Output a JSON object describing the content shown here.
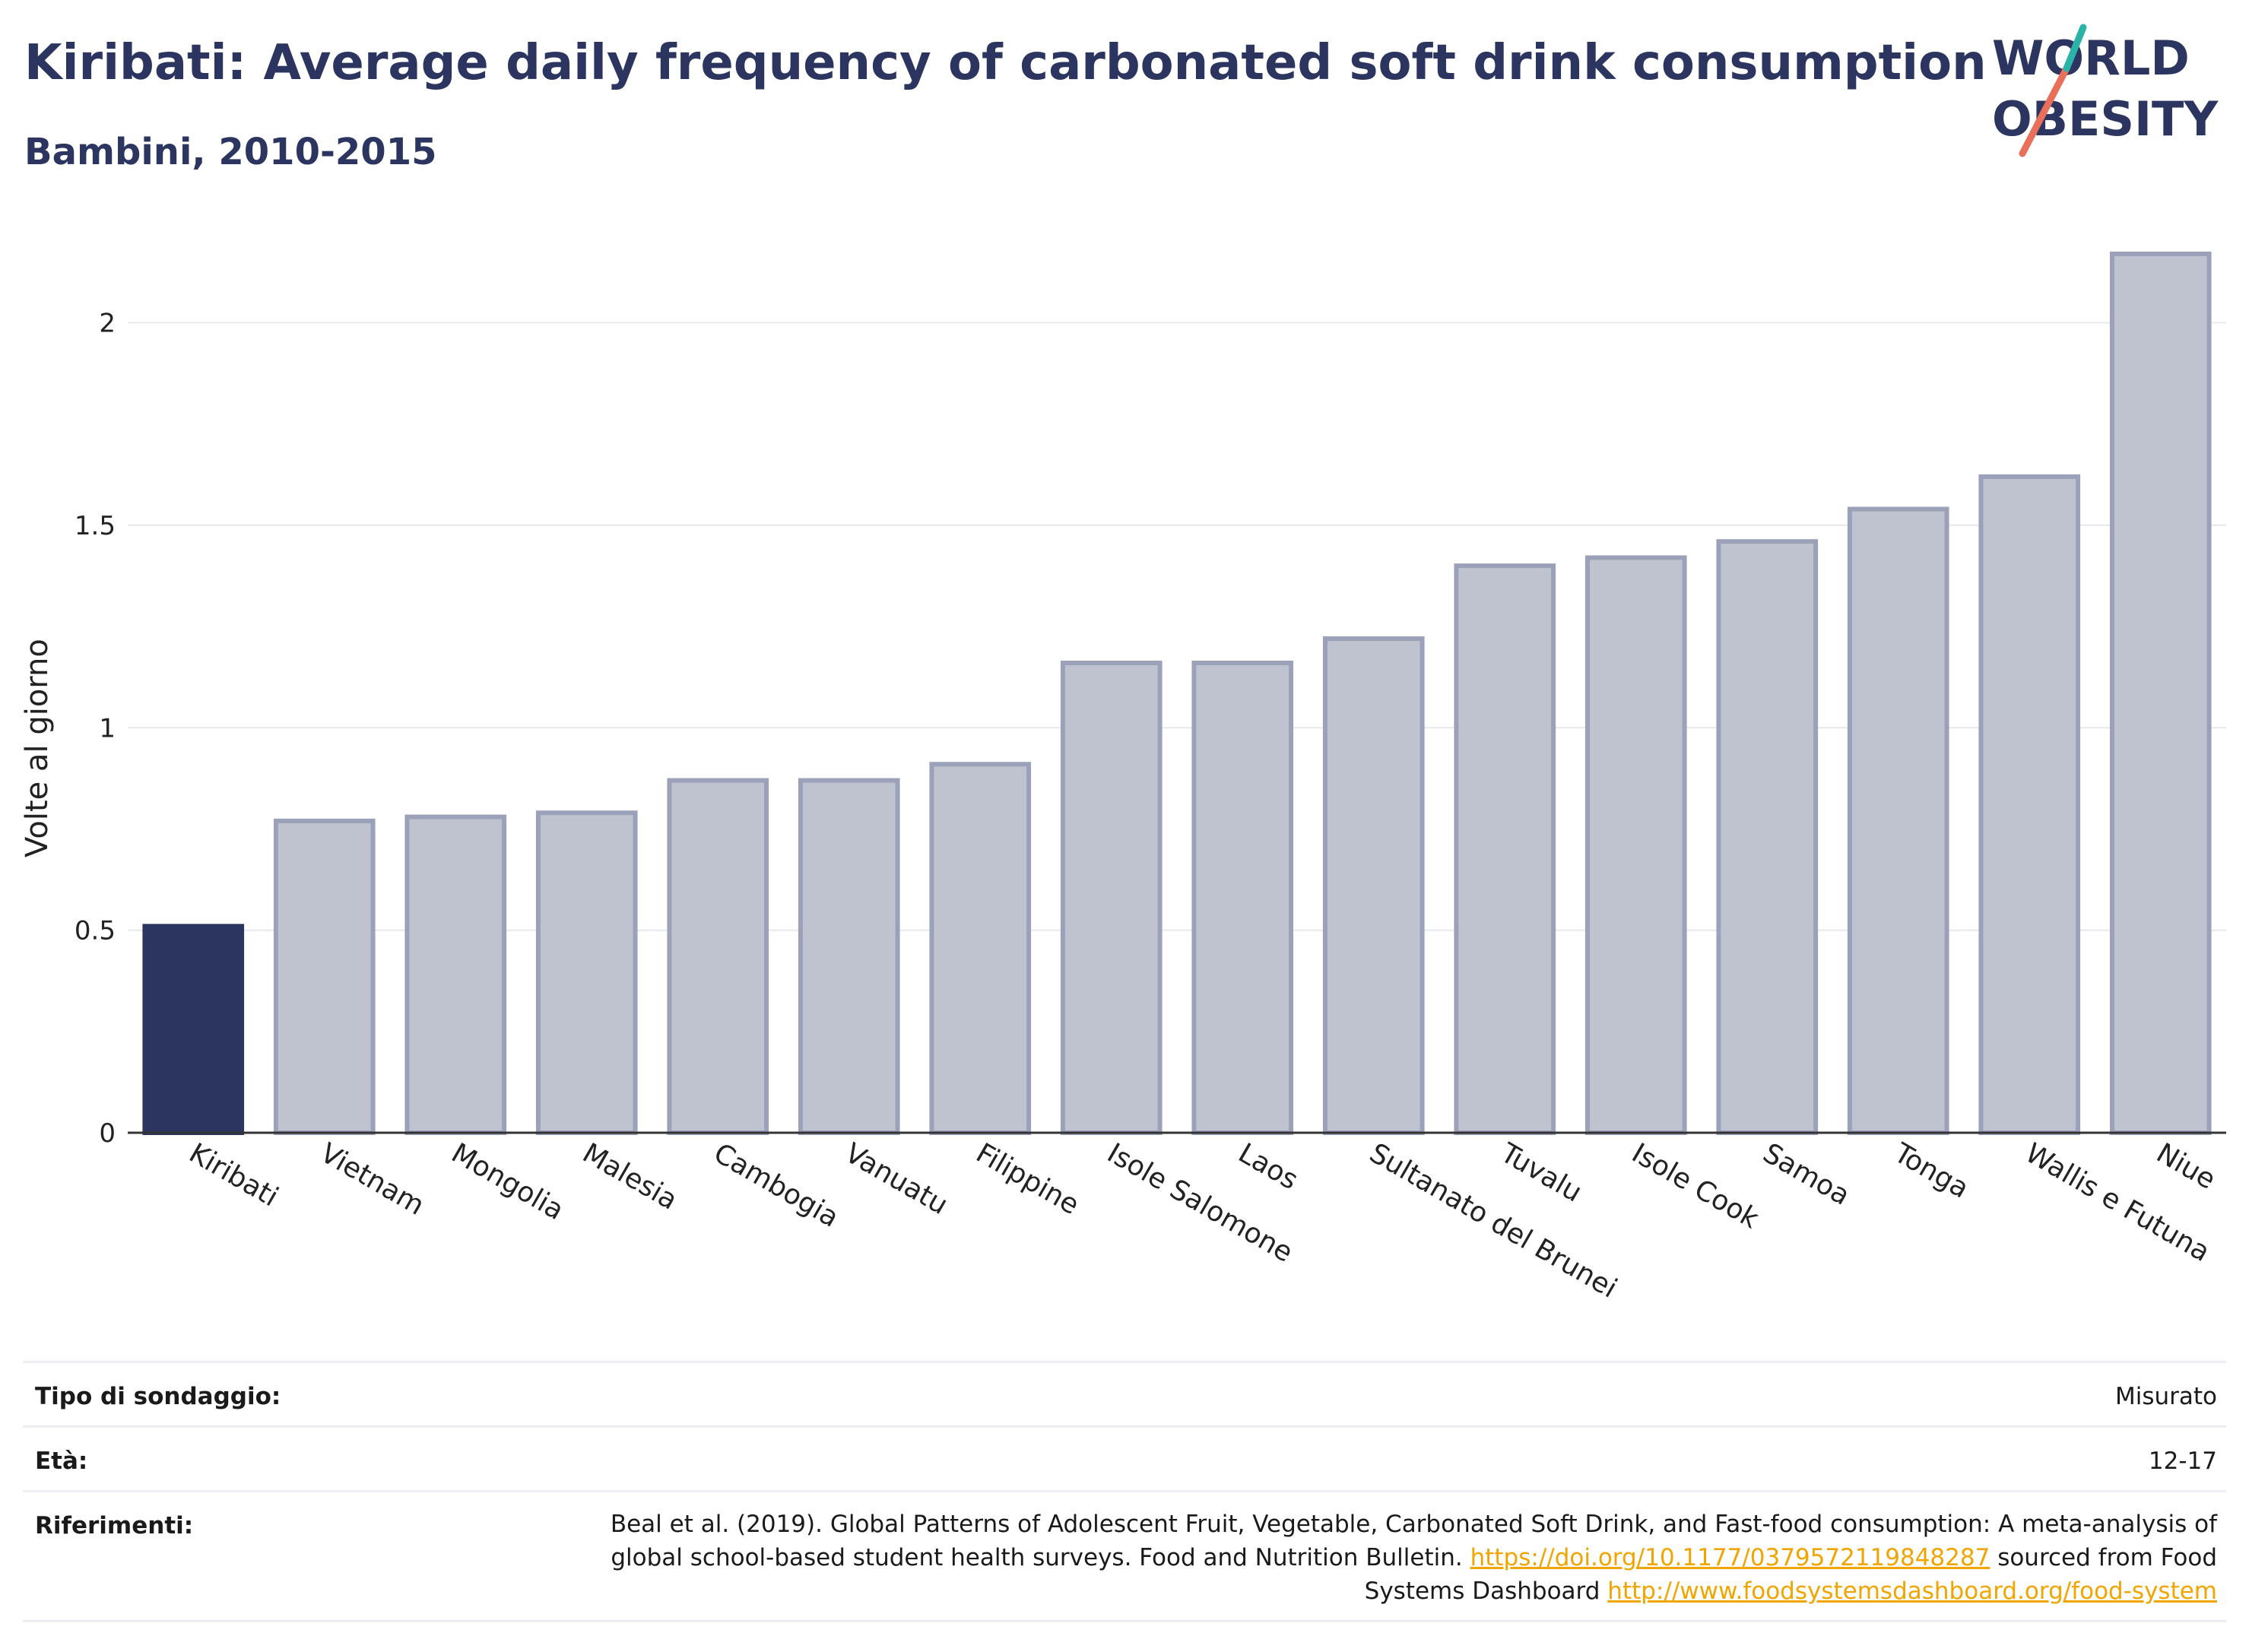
{
  "header": {
    "title": "Kiribati: Average daily frequency of carbonated soft drink consumption",
    "subtitle": "Bambini, 2010-2015"
  },
  "logo": {
    "line1": "WORLD",
    "line2": "OBESITY"
  },
  "colors": {
    "highlight": "#2b3560",
    "bar": "#bfc3cf",
    "bar_border": "#9ba1b8",
    "title": "#2b3560",
    "link": "#f0a500"
  },
  "chart_data": {
    "type": "bar",
    "categories": [
      "Kiribati",
      "Vietnam",
      "Mongolia",
      "Malesia",
      "Cambogia",
      "Vanuatu",
      "Filippine",
      "Isole Salomone",
      "Laos",
      "Sultanato del Brunei",
      "Tuvalu",
      "Isole Cook",
      "Samoa",
      "Tonga",
      "Wallis e Futuna",
      "Niue"
    ],
    "values": [
      0.51,
      0.77,
      0.78,
      0.79,
      0.87,
      0.87,
      0.91,
      1.16,
      1.16,
      1.22,
      1.4,
      1.42,
      1.46,
      1.54,
      1.62,
      2.17
    ],
    "highlight": "Kiribati",
    "ylabel": "Volte al giorno",
    "xlabel": "",
    "ylim": [
      0,
      2.2
    ],
    "yticks": [
      0,
      0.5,
      1,
      1.5,
      2
    ],
    "ytick_labels": [
      "0",
      "0.5",
      "1",
      "1.5",
      "2"
    ],
    "grid": true
  },
  "meta": {
    "survey_label": "Tipo di sondaggio:",
    "survey_value": "Misurato",
    "age_label": "Età:",
    "age_value": "12-17",
    "ref_label": "Riferimenti:",
    "ref_text1": "Beal et al. (2019). Global Patterns of Adolescent Fruit, Vegetable, Carbonated Soft Drink, and Fast-food consumption: A meta-analysis of global school-based student health surveys. Food and Nutrition Bulletin.",
    "ref_link1": "https://doi.org/10.1177/0379572119848287",
    "ref_text2": "sourced from Food Systems Dashboard",
    "ref_link2": "http://www.foodsystemsdashboard.org/food-system"
  }
}
